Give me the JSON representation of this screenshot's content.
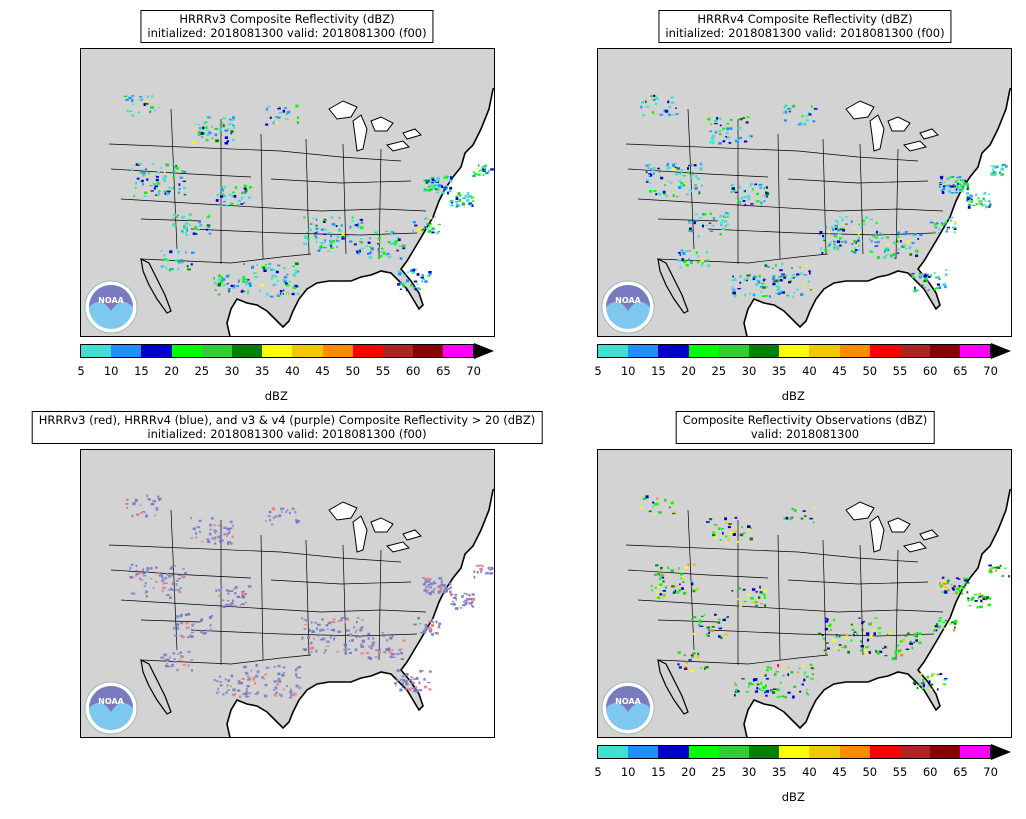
{
  "panels": [
    {
      "title_line1": "HRRRv3 Composite Reflectivity (dBZ)",
      "title_line2": "initialized: 2018081300 valid: 2018081300 (f00)",
      "logo_text": "NOAA",
      "mode": "v3"
    },
    {
      "title_line1": "HRRRv4 Composite Reflectivity (dBZ)",
      "title_line2": "initialized: 2018081300 valid: 2018081300 (f00)",
      "logo_text": "NOAA",
      "mode": "v4"
    },
    {
      "title_line1": "HRRRv3 (red), HRRRv4 (blue), and v3 & v4 (purple) Composite Reflectivity > 20 (dBZ)",
      "title_line2": "initialized: 2018081300 valid: 2018081300 (f00)",
      "logo_text": "NOAA",
      "mode": "diff"
    },
    {
      "title_line1": "Composite Reflectivity Observations (dBZ)",
      "title_line2": "valid: 2018081300",
      "logo_text": "NOAA",
      "mode": "obs"
    }
  ],
  "colorbar": {
    "label": "dBZ",
    "ticks": [
      "5",
      "10",
      "15",
      "20",
      "25",
      "30",
      "35",
      "40",
      "45",
      "50",
      "55",
      "60",
      "65",
      "70"
    ],
    "colors": [
      "#40e0d0",
      "#1e90ff",
      "#0000cd",
      "#00ff00",
      "#32cd32",
      "#008000",
      "#ffff00",
      "#eec900",
      "#ff8c00",
      "#ff0000",
      "#b22222",
      "#8b0000",
      "#ff00ff"
    ],
    "extend": "max"
  },
  "colors": {
    "land": "#d3d3d3",
    "water": "#ffffff",
    "v3_only": "#f08080",
    "v4_only": "#7b7bc4",
    "both": "#8888cc",
    "logo_blue": "#7ec8f0",
    "logo_dark": "#7a7ac0"
  }
}
